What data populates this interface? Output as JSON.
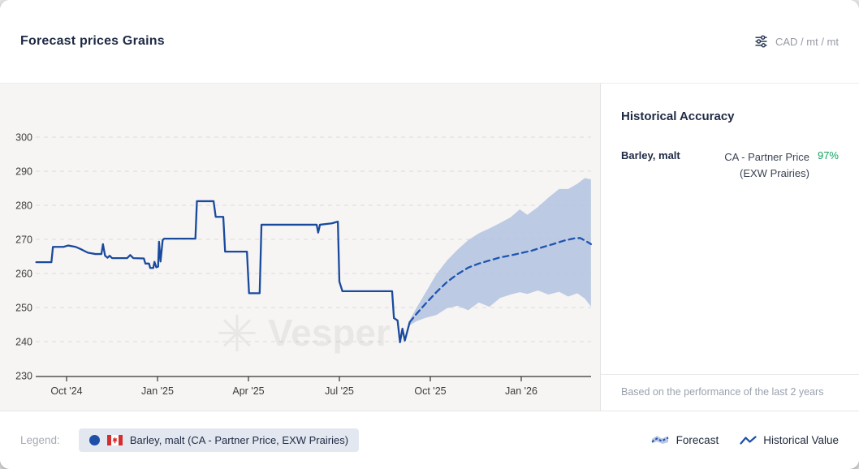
{
  "header": {
    "title": "Forecast prices Grains",
    "unit_selector": "CAD / mt / mt",
    "unit_icon": "sliders-icon"
  },
  "accuracy_panel": {
    "title": "Historical Accuracy",
    "rows": [
      {
        "product": "Barley, malt",
        "source_line1": "CA - Partner Price",
        "source_line2": "(EXW Prairies)",
        "accuracy": "97%"
      }
    ],
    "accuracy_color": "#10a45c",
    "footnote": "Based on the performance of the last 2 years"
  },
  "legend": {
    "label": "Legend:",
    "flag_icon": "canada-flag-icon",
    "series_pill": "Barley, malt (CA - Partner Price, EXW Prairies)",
    "forecast_label": "Forecast",
    "historical_label": "Historical Value"
  },
  "chart_data": {
    "type": "line",
    "title": "Forecast prices Grains",
    "unit": "CAD / mt",
    "watermark": "Vesper",
    "x_encoding": "months elapsed from Sep 1 2024",
    "x_ticks": [
      {
        "t": 1,
        "label": "Oct '24"
      },
      {
        "t": 4,
        "label": "Jan '25"
      },
      {
        "t": 7,
        "label": "Apr '25"
      },
      {
        "t": 10,
        "label": "Jul '25"
      },
      {
        "t": 13,
        "label": "Oct '25"
      },
      {
        "t": 16,
        "label": "Jan '26"
      }
    ],
    "y_ticks": [
      230,
      240,
      250,
      260,
      270,
      280,
      290,
      300
    ],
    "ylim": [
      230,
      300
    ],
    "xlim": [
      0,
      18.3
    ],
    "grid": true,
    "grid_color": "#dddcda",
    "axis_color": "#333333",
    "series": [
      {
        "name": "Barley, malt (CA - Partner Price, EXW Prairies) — Historical Value",
        "style": "solid",
        "color": "#1a4a9e",
        "points": [
          [
            0.0,
            263.3
          ],
          [
            0.5,
            263.3
          ],
          [
            0.55,
            267.8
          ],
          [
            0.9,
            267.8
          ],
          [
            1.05,
            268.2
          ],
          [
            1.3,
            267.8
          ],
          [
            1.5,
            267.0
          ],
          [
            1.7,
            266.1
          ],
          [
            1.95,
            265.7
          ],
          [
            2.15,
            265.7
          ],
          [
            2.2,
            268.6
          ],
          [
            2.27,
            265.2
          ],
          [
            2.35,
            264.6
          ],
          [
            2.42,
            265.2
          ],
          [
            2.5,
            264.5
          ],
          [
            3.0,
            264.5
          ],
          [
            3.1,
            265.4
          ],
          [
            3.2,
            264.5
          ],
          [
            3.55,
            264.4
          ],
          [
            3.6,
            262.9
          ],
          [
            3.72,
            262.9
          ],
          [
            3.76,
            261.6
          ],
          [
            3.86,
            261.6
          ],
          [
            3.9,
            263.4
          ],
          [
            3.96,
            261.8
          ],
          [
            4.02,
            262.0
          ],
          [
            4.05,
            269.3
          ],
          [
            4.1,
            263.5
          ],
          [
            4.17,
            269.8
          ],
          [
            4.22,
            270.2
          ],
          [
            5.25,
            270.2
          ],
          [
            5.3,
            281.2
          ],
          [
            5.85,
            281.2
          ],
          [
            5.92,
            276.6
          ],
          [
            6.17,
            276.6
          ],
          [
            6.23,
            266.4
          ],
          [
            6.95,
            266.4
          ],
          [
            7.02,
            254.2
          ],
          [
            7.37,
            254.2
          ],
          [
            7.43,
            274.3
          ],
          [
            9.25,
            274.3
          ],
          [
            9.3,
            272.0
          ],
          [
            9.36,
            274.3
          ],
          [
            9.75,
            274.7
          ],
          [
            9.95,
            275.2
          ],
          [
            10.0,
            257.6
          ],
          [
            10.1,
            254.8
          ],
          [
            11.74,
            254.8
          ],
          [
            11.8,
            246.9
          ],
          [
            11.92,
            246.2
          ],
          [
            12.0,
            239.8
          ],
          [
            12.08,
            243.8
          ],
          [
            12.16,
            240.3
          ],
          [
            12.32,
            245.7
          ]
        ]
      },
      {
        "name": "Forecast",
        "style": "dashed",
        "color": "#1e55b0",
        "points": [
          [
            12.32,
            245.7
          ],
          [
            12.55,
            248.2
          ],
          [
            12.85,
            251.2
          ],
          [
            13.2,
            254.5
          ],
          [
            13.55,
            257.5
          ],
          [
            13.9,
            259.8
          ],
          [
            14.25,
            261.7
          ],
          [
            14.6,
            262.9
          ],
          [
            14.95,
            263.8
          ],
          [
            15.3,
            264.7
          ],
          [
            15.65,
            265.3
          ],
          [
            16.0,
            266.0
          ],
          [
            16.35,
            266.7
          ],
          [
            16.7,
            267.7
          ],
          [
            17.05,
            268.6
          ],
          [
            17.4,
            269.6
          ],
          [
            17.75,
            270.3
          ],
          [
            17.95,
            270.4
          ],
          [
            18.15,
            269.4
          ],
          [
            18.3,
            268.6
          ]
        ]
      }
    ],
    "band": {
      "name": "Forecast confidence band",
      "color": "#b5c4e0",
      "points": [
        [
          12.32,
          244.8,
          246.3
        ],
        [
          12.55,
          246.0,
          250.0
        ],
        [
          12.85,
          247.0,
          254.5
        ],
        [
          13.2,
          247.8,
          259.8
        ],
        [
          13.55,
          249.8,
          263.8
        ],
        [
          13.9,
          250.5,
          267.0
        ],
        [
          14.25,
          249.2,
          269.8
        ],
        [
          14.6,
          251.5,
          271.8
        ],
        [
          14.95,
          250.2,
          273.2
        ],
        [
          15.3,
          252.8,
          274.8
        ],
        [
          15.65,
          253.8,
          276.5
        ],
        [
          15.95,
          254.5,
          278.8
        ],
        [
          16.2,
          254.0,
          277.2
        ],
        [
          16.55,
          255.0,
          279.5
        ],
        [
          16.9,
          253.8,
          282.3
        ],
        [
          17.25,
          254.6,
          284.8
        ],
        [
          17.55,
          253.2,
          284.8
        ],
        [
          17.85,
          254.2,
          286.3
        ],
        [
          18.1,
          252.6,
          288.0
        ],
        [
          18.3,
          250.3,
          287.6
        ]
      ]
    },
    "legend_position": "bottom"
  }
}
